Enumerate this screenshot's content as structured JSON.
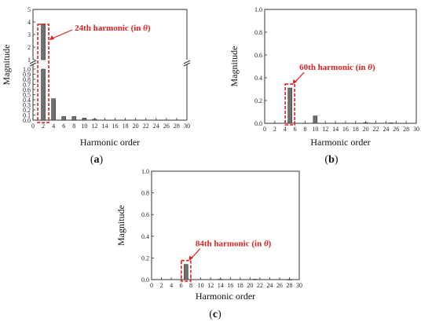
{
  "chart_data": [
    {
      "type": "bar",
      "panel_label": "(a)",
      "panel_letter": "a",
      "xlabel": "Harmonic order",
      "ylabel": "Magnitude",
      "xlim": [
        0,
        30
      ],
      "xticks": [
        "0",
        "2",
        "4",
        "6",
        "8",
        "10",
        "12",
        "14",
        "16",
        "18",
        "20",
        "22",
        "24",
        "26",
        "28",
        "30"
      ],
      "broken_axis": true,
      "ylim_lower": [
        0,
        1.0
      ],
      "yticks_lower": [
        "0.0",
        "0.1",
        "0.2",
        "0.3",
        "0.4",
        "0.5",
        "0.6",
        "0.7",
        "0.8",
        "0.9",
        "1.0"
      ],
      "ylim_upper": [
        1,
        5
      ],
      "yticks_upper": [
        "1",
        "2",
        "3",
        "4",
        "5"
      ],
      "x": [
        2,
        4,
        6,
        8,
        10,
        12
      ],
      "values": [
        3.85,
        0.42,
        0.07,
        0.07,
        0.04,
        0.02
      ],
      "annotation": {
        "text_main": "24th harmonic (in ",
        "symbol": "θ",
        "text_end": ")",
        "target_x": 2
      }
    },
    {
      "type": "bar",
      "panel_label": "(b)",
      "panel_letter": "b",
      "xlabel": "Harmonic order",
      "ylabel": "Magnitude",
      "xlim": [
        0,
        30
      ],
      "xticks": [
        "0",
        "2",
        "4",
        "6",
        "8",
        "10",
        "12",
        "14",
        "16",
        "18",
        "20",
        "22",
        "24",
        "26",
        "28",
        "30"
      ],
      "ylim": [
        0,
        1.0
      ],
      "yticks": [
        "0.0",
        "0.2",
        "0.4",
        "0.6",
        "0.8",
        "1.0"
      ],
      "x": [
        5,
        10,
        20,
        25
      ],
      "values": [
        0.31,
        0.065,
        0.006,
        0.004
      ],
      "annotation": {
        "text_main": "60th harmonic (in ",
        "symbol": "θ",
        "text_end": ")",
        "target_x": 5
      }
    },
    {
      "type": "bar",
      "panel_label": "(c)",
      "panel_letter": "c",
      "xlabel": "Harmonic order",
      "ylabel": "Magnitude",
      "xlim": [
        0,
        30
      ],
      "xticks": [
        "0",
        "2",
        "4",
        "6",
        "8",
        "10",
        "12",
        "14",
        "16",
        "18",
        "20",
        "22",
        "24",
        "26",
        "28",
        "30"
      ],
      "ylim": [
        0,
        1.0
      ],
      "yticks": [
        "0.0",
        "0.2",
        "0.4",
        "0.6",
        "0.8",
        "1.0"
      ],
      "x": [
        7,
        14,
        21,
        28
      ],
      "values": [
        0.14,
        0.004,
        0.004,
        0.002
      ],
      "annotation": {
        "text_main": "84th harmonic (in ",
        "symbol": "θ",
        "text_end": ")",
        "target_x": 7
      }
    }
  ]
}
